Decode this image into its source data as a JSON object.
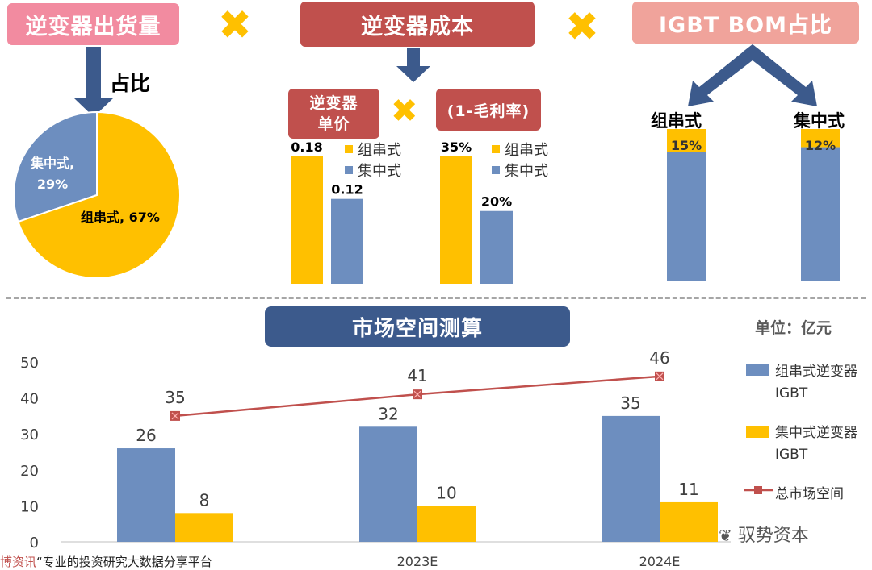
{
  "top": {
    "box1": "逆变器出货量",
    "box2": "逆变器成本",
    "box3": "IGBT BOM占比",
    "share_label": "占比",
    "unit_price_label": "逆变器\n单价",
    "margin_label": "(1-毛利率)",
    "times_symbol": "✖"
  },
  "colors": {
    "string": "#ffc000",
    "central": "#6d8ebf",
    "total": "#c0504d",
    "pink": "#f28ba0",
    "red": "#c0504d",
    "salmon": "#f0a39b",
    "navy": "#3c5a8c"
  },
  "pie": {
    "slices": [
      {
        "name": "集中式",
        "value": 29,
        "label": "集中式,\n29%"
      },
      {
        "name": "组串式",
        "value": 67,
        "label": "组串式, 67%"
      }
    ]
  },
  "price_chart": {
    "values": [
      {
        "name": "组串式",
        "value": 0.18,
        "label": "0.18"
      },
      {
        "name": "集中式",
        "value": 0.12,
        "label": "0.12"
      }
    ],
    "legend": [
      "组串式",
      "集中式"
    ]
  },
  "margin_chart": {
    "values": [
      {
        "name": "组串式",
        "value": 35,
        "label": "35%"
      },
      {
        "name": "集中式",
        "value": 20,
        "label": "20%"
      }
    ],
    "legend": [
      "组串式",
      "集中式"
    ]
  },
  "bom": {
    "items": [
      {
        "name": "组串式",
        "share": 15,
        "label": "15%"
      },
      {
        "name": "集中式",
        "share": 12,
        "label": "12%"
      }
    ]
  },
  "bottom": {
    "title": "市场空间测算",
    "unit": "单位：亿元"
  },
  "chart_data": {
    "type": "bar",
    "categories": [
      "",
      "2023E",
      "2024E"
    ],
    "ylim": [
      0,
      50
    ],
    "yticks": [
      0,
      10,
      20,
      30,
      40,
      50
    ],
    "series": [
      {
        "name": "组串式逆变器\nIGBT",
        "type": "bar",
        "values": [
          26,
          32,
          35
        ]
      },
      {
        "name": "集中式逆变器\nIGBT",
        "type": "bar",
        "values": [
          8,
          10,
          11
        ]
      },
      {
        "name": "总市场空间",
        "type": "line",
        "values": [
          35,
          41,
          46
        ]
      }
    ]
  },
  "watermarks": {
    "left": "“专业的投资研究大数据分享平台",
    "left_brand": "博资讯",
    "right": "驭势资本"
  }
}
